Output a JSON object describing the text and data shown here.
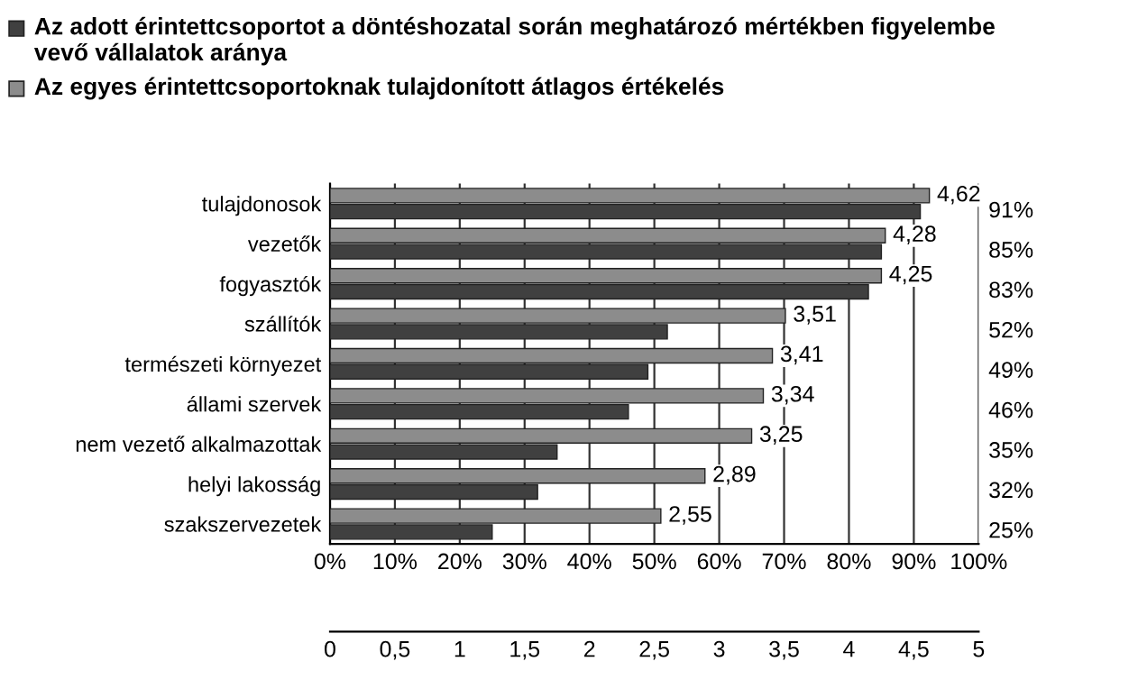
{
  "chart_data": {
    "type": "bar",
    "orientation": "horizontal",
    "categories": [
      "tulajdonosok",
      "vezetők",
      "fogyasztók",
      "szállítók",
      "természeti környezet",
      "állami szervek",
      "nem vezető alkalmazottak",
      "helyi lakosság",
      "szakszervezetek"
    ],
    "series": [
      {
        "name": "Az adott érintettcsoportot a döntéshozatal során meghatározó mértékben figyelembe vevő vállalatok aránya",
        "color": "#404040",
        "values": [
          91,
          85,
          83,
          52,
          49,
          46,
          35,
          32,
          25
        ],
        "value_labels": [
          "91%",
          "85%",
          "83%",
          "52%",
          "49%",
          "46%",
          "35%",
          "32%",
          "25%"
        ]
      },
      {
        "name": "Az egyes érintettcsoportoknak tulajdonított átlagos értékelés",
        "color": "#8c8c8c",
        "axis": "x2",
        "values": [
          4.62,
          4.28,
          4.25,
          3.51,
          3.41,
          3.34,
          3.25,
          2.89,
          2.55
        ],
        "value_labels": [
          "4,62",
          "4,28",
          "4,25",
          "3,51",
          "3,41",
          "3,34",
          "3,25",
          "2,89",
          "2,55"
        ]
      }
    ],
    "xlim": [
      0,
      100
    ],
    "xticks": [
      {
        "value": 0,
        "label": "0%"
      },
      {
        "value": 10,
        "label": "10%"
      },
      {
        "value": 20,
        "label": "20%"
      },
      {
        "value": 30,
        "label": "30%"
      },
      {
        "value": 40,
        "label": "40%"
      },
      {
        "value": 50,
        "label": "50%"
      },
      {
        "value": 60,
        "label": "60%"
      },
      {
        "value": 70,
        "label": "70%"
      },
      {
        "value": 80,
        "label": "80%"
      },
      {
        "value": 90,
        "label": "90%"
      },
      {
        "value": 100,
        "label": "100%"
      }
    ],
    "x2lim": [
      0,
      5
    ],
    "x2ticks": [
      0,
      {
        "value": 0.5,
        "label": "0,5"
      },
      1,
      {
        "value": 1.5,
        "label": "1,5"
      },
      2,
      {
        "value": 2.5,
        "label": "2,5"
      },
      3,
      {
        "value": 3.5,
        "label": "3,5"
      },
      4,
      {
        "value": 4.5,
        "label": "4,5"
      },
      5
    ],
    "grid": "x",
    "legend": "top left"
  }
}
